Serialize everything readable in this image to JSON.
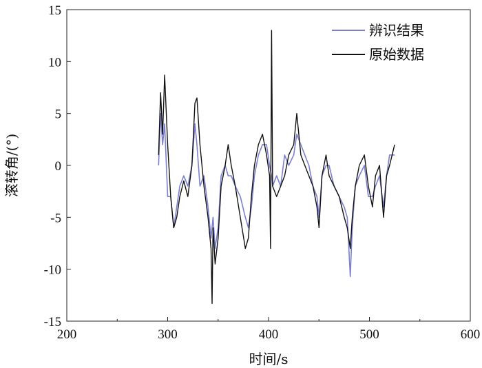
{
  "chart_data": {
    "type": "line",
    "title": "",
    "xlabel": "时间/s",
    "ylabel": "滚转角/(°)",
    "xlim": [
      200,
      600
    ],
    "ylim": [
      -15,
      15
    ],
    "xticks": [
      200,
      300,
      400,
      500,
      600
    ],
    "yticks": [
      -15,
      -10,
      -5,
      0,
      5,
      10,
      15
    ],
    "legend_position": "top-right",
    "series": [
      {
        "name": "辨识结果",
        "color": "#7b7fd0",
        "x": [
          291,
          293,
          295,
          297,
          300,
          303,
          306,
          309,
          312,
          316,
          320,
          324,
          327,
          329,
          332,
          336,
          340,
          343,
          345,
          347,
          350,
          353,
          357,
          360,
          363,
          367,
          372,
          377,
          380,
          383,
          386,
          390,
          394,
          398,
          401,
          403,
          404,
          408,
          412,
          416,
          420,
          425,
          428,
          432,
          436,
          440,
          444,
          448,
          450,
          453,
          457,
          460,
          465,
          470,
          475,
          478,
          481,
          483,
          486,
          490,
          495,
          499,
          503,
          506,
          510,
          514,
          517,
          520,
          525
        ],
        "y": [
          0,
          5,
          2,
          4,
          -3,
          -3,
          -6,
          -4,
          -2,
          -1,
          -2,
          0,
          4,
          2,
          -2,
          -1,
          -4,
          -7,
          -5,
          -8,
          -6,
          -1,
          0,
          -1,
          -1,
          -2,
          -3,
          -5,
          -6,
          -4,
          -1,
          1,
          2,
          2,
          0,
          -1,
          -2,
          -1,
          -2,
          1,
          0,
          1,
          3,
          2,
          1,
          0,
          -2,
          -3,
          -5,
          -1,
          0,
          0,
          -2,
          -3,
          -4,
          -5,
          -10.7,
          -6,
          -2,
          -1,
          0,
          -3,
          -3,
          -2,
          -1,
          -4,
          -1,
          1,
          1
        ]
      },
      {
        "name": "原始数据",
        "color": "#111111",
        "x": [
          291,
          293,
          295,
          297,
          300,
          303,
          306,
          309,
          312,
          316,
          320,
          324,
          327,
          329,
          332,
          336,
          340,
          343,
          344,
          345,
          347,
          350,
          353,
          357,
          360,
          363,
          367,
          372,
          377,
          380,
          383,
          386,
          390,
          394,
          398,
          401,
          402,
          403,
          404,
          408,
          412,
          416,
          420,
          425,
          428,
          432,
          436,
          440,
          444,
          448,
          450,
          453,
          457,
          460,
          465,
          470,
          475,
          478,
          481,
          483,
          486,
          490,
          495,
          499,
          503,
          506,
          510,
          514,
          517,
          520,
          525
        ],
        "y": [
          1,
          7,
          3,
          8.7,
          2,
          -3,
          -6,
          -5,
          -3,
          -1.5,
          -3,
          0,
          6,
          6.5,
          2,
          -2,
          -5,
          -8,
          -13.3,
          -6,
          -9.5,
          -7,
          -2,
          0,
          2,
          0,
          -2,
          -5,
          -8,
          -7,
          -3,
          0,
          2,
          3,
          1,
          -1,
          -8,
          13,
          -2,
          -3,
          -2,
          -1,
          1,
          2,
          5,
          1,
          0,
          -1,
          -2,
          -4,
          -6,
          -1,
          1,
          -1,
          -2,
          -3,
          -5,
          -6,
          -8,
          -5,
          -2,
          0,
          1,
          -2,
          -4,
          -1,
          0,
          -5,
          -1,
          0,
          2
        ]
      }
    ]
  }
}
